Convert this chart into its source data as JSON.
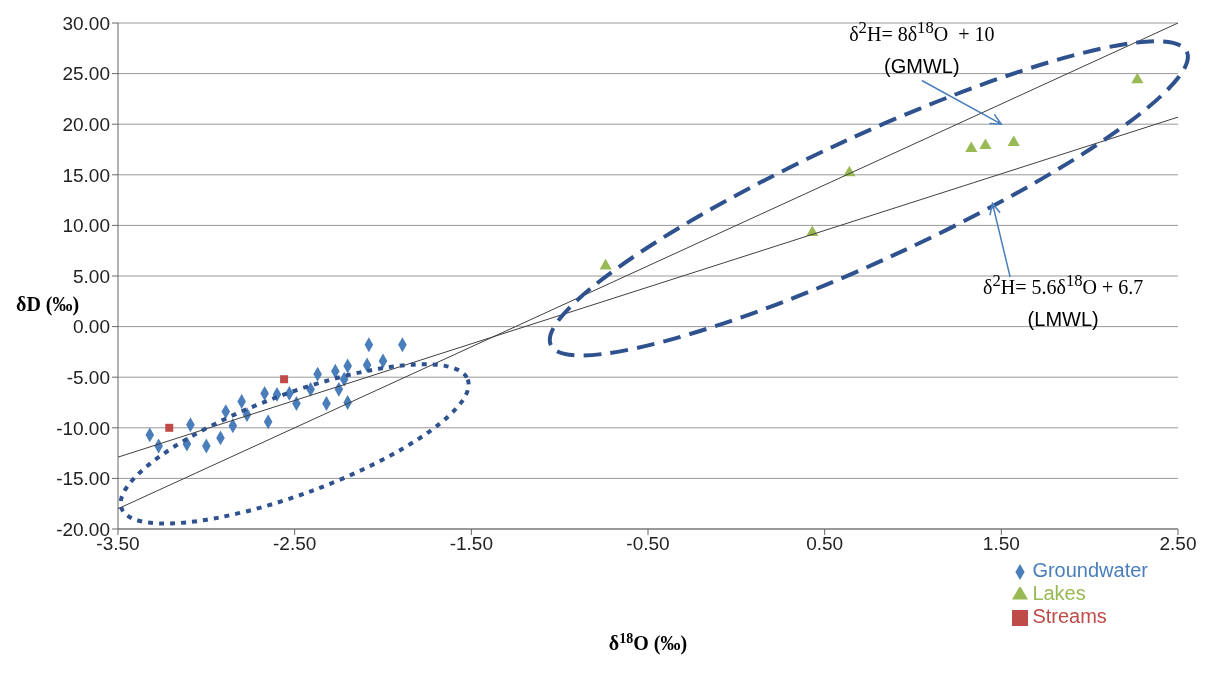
{
  "chart_data": {
    "type": "scatter",
    "xlabel": "δ$^{18}$O (‰)",
    "ylabel": "δD (‰)",
    "xlim": [
      -3.5,
      2.5
    ],
    "ylim": [
      -20,
      30
    ],
    "xticks": [
      {
        "value": -3.5,
        "label": "-3.50"
      },
      {
        "value": -2.5,
        "label": "-2.50"
      },
      {
        "value": -1.5,
        "label": "-1.50"
      },
      {
        "value": -0.5,
        "label": "-0.50"
      },
      {
        "value": 0.5,
        "label": "0.50"
      },
      {
        "value": 1.5,
        "label": "1.50"
      },
      {
        "value": 2.5,
        "label": "2.50"
      }
    ],
    "yticks": [
      {
        "value": -20,
        "label": "-20.00"
      },
      {
        "value": -15,
        "label": "-15.00"
      },
      {
        "value": -10,
        "label": "-10.00"
      },
      {
        "value": -5,
        "label": "-5.00"
      },
      {
        "value": 0,
        "label": "0.00"
      },
      {
        "value": 5,
        "label": "5.00"
      },
      {
        "value": 10,
        "label": "10.00"
      },
      {
        "value": 15,
        "label": "15.00"
      },
      {
        "value": 20,
        "label": "20.00"
      },
      {
        "value": 25,
        "label": "25.00"
      },
      {
        "value": 30,
        "label": "30.00"
      }
    ],
    "grid": "y",
    "legend": "bottom right",
    "series": [
      {
        "name": "Groundwater",
        "color": "#4a7ebb",
        "marker": "diamond",
        "x": [
          -3.32,
          -3.27,
          -3.09,
          -3.11,
          -3.0,
          -2.92,
          -2.85,
          -2.89,
          -2.8,
          -2.77,
          -2.65,
          -2.67,
          -2.6,
          -2.53,
          -2.49,
          -2.41,
          -2.37,
          -2.32,
          -2.27,
          -2.25,
          -2.22,
          -2.2,
          -2.2,
          -2.09,
          -2.08,
          -2.0,
          -1.89
        ],
        "values": [
          -10.7,
          -11.8,
          -9.7,
          -11.6,
          -11.8,
          -11.0,
          -9.8,
          -8.4,
          -7.4,
          -8.7,
          -9.4,
          -6.6,
          -6.7,
          -6.6,
          -7.6,
          -6.2,
          -4.7,
          -7.6,
          -4.4,
          -6.2,
          -5.2,
          -7.5,
          -3.9,
          -3.8,
          -1.8,
          -3.4,
          -1.8
        ]
      },
      {
        "name": "Streams",
        "color": "#be4b48",
        "marker": "square",
        "x": [
          -3.21,
          -2.56
        ],
        "values": [
          -10.0,
          -5.2
        ]
      },
      {
        "name": "Lakes",
        "color": "#98b954",
        "marker": "triangle",
        "x": [
          -0.74,
          0.43,
          0.64,
          1.33,
          1.41,
          1.57,
          2.27
        ],
        "values": [
          6.0,
          9.3,
          15.2,
          17.6,
          17.9,
          18.2,
          24.4
        ]
      },
      {
        "type": "line",
        "color": "#404040",
        "marker": "none",
        "x": [
          -3.5,
          2.5
        ],
        "values": [
          -18.0,
          30.0
        ]
      },
      {
        "type": "line",
        "color": "#404040",
        "marker": "none",
        "x": [
          -3.5,
          2.5
        ],
        "values": [
          -12.9,
          20.7
        ]
      }
    ],
    "annotations": [
      "δ$^{2}$H= 8δ$^{18}$O  + 10",
      "(GMWL)",
      "δ$^{2}$H= 5.6δ$^{18}$O + 6.7",
      "(LMWL)"
    ]
  }
}
